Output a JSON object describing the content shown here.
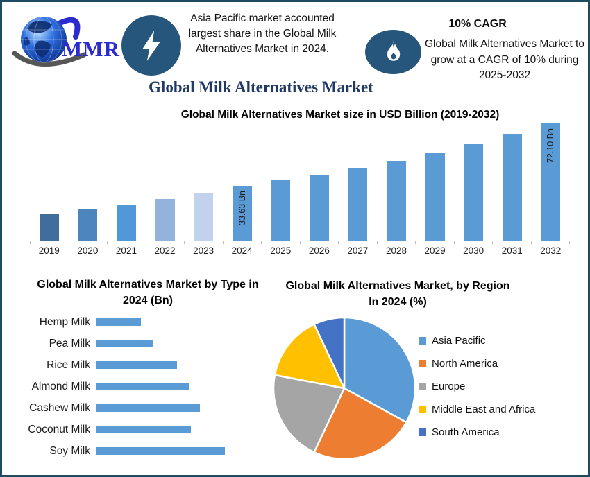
{
  "header": {
    "brand": "MMR",
    "fact1": {
      "icon": "lightning",
      "text": "Asia Pacific market accounted largest share in the Global Milk Alternatives Market in 2024."
    },
    "fact2": {
      "icon": "flame",
      "heading": "10% CAGR",
      "text": "Global Milk Alternatives Market to grow at a CAGR of 10% during 2025-2032"
    }
  },
  "page_title": "Global Milk Alternatives Market",
  "colors": {
    "border": "#1e4b61",
    "icon_circle": "#27567d",
    "title_navy": "#1f3864",
    "logo_blue": "#2b2bd0",
    "primary_bar_blue": "#5b9bd5",
    "axis_gray": "#bfbfbf"
  },
  "chart_data": [
    {
      "type": "bar",
      "title": "Global Milk Alternatives Market size in USD Billion (2019-2032)",
      "unit": "USD Billion",
      "categories": [
        "2019",
        "2020",
        "2021",
        "2022",
        "2023",
        "2024",
        "2025",
        "2026",
        "2027",
        "2028",
        "2029",
        "2030",
        "2031",
        "2032"
      ],
      "values": [
        16.5,
        19.0,
        22.1,
        25.4,
        29.3,
        33.63,
        36.99,
        40.69,
        44.76,
        49.24,
        54.16,
        59.58,
        65.54,
        72.1
      ],
      "bar_colors": [
        "#3f6d9c",
        "#4d86be",
        "#5098d8",
        "#93b2dc",
        "#c3d2ec",
        "#5b9bd5",
        "#5b9bd5",
        "#5b9bd5",
        "#5b9bd5",
        "#5b9bd5",
        "#5b9bd5",
        "#5b9bd5",
        "#5b9bd5",
        "#5b9bd5"
      ],
      "annotations": [
        {
          "index": 5,
          "label": "33.63 Bn"
        },
        {
          "index": 13,
          "label": "72.10 Bn"
        }
      ],
      "ylim": [
        0,
        75
      ],
      "grid": false,
      "xlabel": "",
      "ylabel": ""
    },
    {
      "type": "bar",
      "orientation": "horizontal",
      "title": "Global Milk Alternatives Market by Type in 2024 (Bn)",
      "unit": "Bn",
      "categories": [
        "Hemp Milk",
        "Pea Milk",
        "Rice Milk",
        "Almond Milk",
        "Cashew Milk",
        "Coconut Milk",
        "Soy Milk"
      ],
      "values": [
        2.5,
        3.2,
        4.5,
        5.2,
        5.8,
        5.3,
        7.2
      ],
      "color": "#5b9bd5",
      "xlim": [
        0,
        8
      ],
      "grid": false
    },
    {
      "type": "pie",
      "title": "Global Milk Alternatives Market, by Region In 2024 (%)",
      "labels": [
        "Asia Pacific",
        "North America",
        "Europe",
        "Middle East and Africa",
        "South America"
      ],
      "values": [
        33,
        24,
        21,
        15,
        7
      ],
      "colors": [
        "#5b9bd5",
        "#ed7d31",
        "#a5a5a5",
        "#ffc000",
        "#4472c4"
      ],
      "start": "top",
      "direction": "clockwise",
      "legend_position": "right"
    }
  ]
}
